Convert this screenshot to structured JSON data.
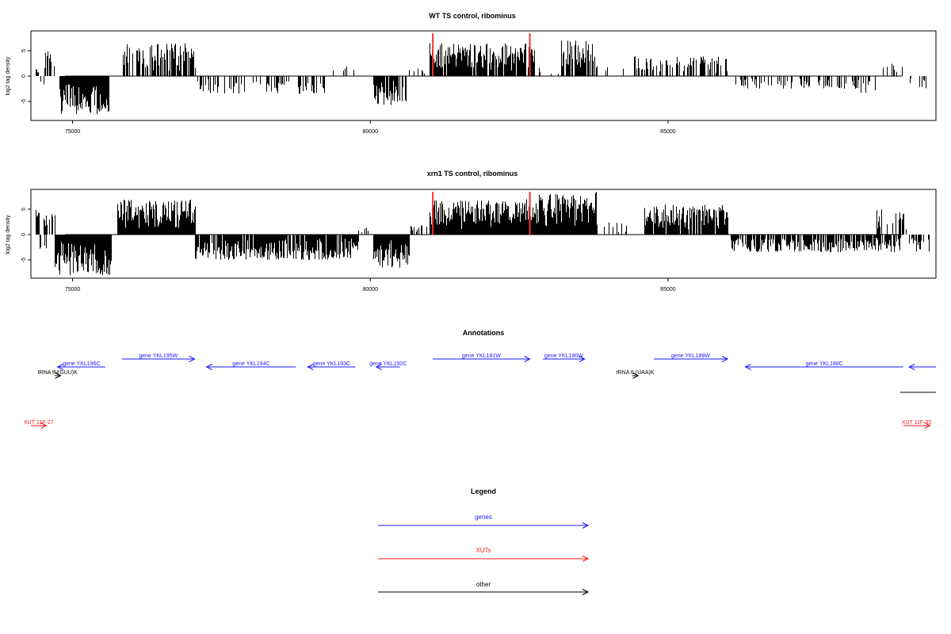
{
  "chart_data": [
    {
      "type": "bar",
      "title": "WT TS control, ribominus",
      "xlabel": "",
      "ylabel": "log2 tag density",
      "xlim": [
        74300,
        89500
      ],
      "ylim": [
        -8.5,
        8.5
      ],
      "x_ticks": [
        75000,
        80000,
        85000
      ],
      "x_tick_labels": [
        "75000",
        "80000",
        "85000"
      ],
      "y_ticks": [
        -5,
        0,
        5
      ],
      "y_tick_labels": [
        "-5",
        "0",
        "5"
      ],
      "grid": false,
      "bar_color": "#000000",
      "marker_color": "#ff3030",
      "markers_x": [
        81050,
        82680
      ],
      "segments": [
        {
          "start": 74360,
          "end": 74440,
          "sign": 1,
          "amp": 1.5,
          "density": 0.4
        },
        {
          "start": 74440,
          "end": 74520,
          "sign": -1,
          "amp": 1.8,
          "density": 0.3
        },
        {
          "start": 74520,
          "end": 74680,
          "sign": 1,
          "amp": 5.5,
          "density": 0.5
        },
        {
          "start": 74780,
          "end": 75600,
          "sign": -1,
          "amp": 7.5,
          "density": 1.0
        },
        {
          "start": 75800,
          "end": 77050,
          "sign": 1,
          "amp": 6.5,
          "density": 0.7
        },
        {
          "start": 77100,
          "end": 79300,
          "sign": -1,
          "amp": 3.5,
          "density": 0.35
        },
        {
          "start": 79300,
          "end": 79800,
          "sign": 1,
          "amp": 2.0,
          "density": 0.15
        },
        {
          "start": 80050,
          "end": 80600,
          "sign": -1,
          "amp": 6.0,
          "density": 0.9
        },
        {
          "start": 80650,
          "end": 80900,
          "sign": 1,
          "amp": 1.5,
          "density": 0.2
        },
        {
          "start": 81000,
          "end": 82750,
          "sign": 1,
          "amp": 6.5,
          "density": 0.9
        },
        {
          "start": 82800,
          "end": 83200,
          "sign": 1,
          "amp": 2.0,
          "density": 0.2
        },
        {
          "start": 83200,
          "end": 83800,
          "sign": 1,
          "amp": 7.0,
          "density": 0.8
        },
        {
          "start": 83850,
          "end": 84300,
          "sign": 1,
          "amp": 2.0,
          "density": 0.15
        },
        {
          "start": 84400,
          "end": 86000,
          "sign": 1,
          "amp": 4.0,
          "density": 0.45
        },
        {
          "start": 86100,
          "end": 88200,
          "sign": -1,
          "amp": 2.5,
          "density": 0.35
        },
        {
          "start": 88200,
          "end": 88500,
          "sign": -1,
          "amp": 4.0,
          "density": 0.3
        },
        {
          "start": 88600,
          "end": 88950,
          "sign": 1,
          "amp": 2.5,
          "density": 0.2
        },
        {
          "start": 89050,
          "end": 89400,
          "sign": -1,
          "amp": 2.5,
          "density": 0.3
        }
      ]
    },
    {
      "type": "bar",
      "title": "xrn1 TS control, ribominus",
      "xlabel": "",
      "ylabel": "log2 tag density",
      "xlim": [
        74300,
        89500
      ],
      "ylim": [
        -8.5,
        8.5
      ],
      "x_ticks": [
        75000,
        80000,
        85000
      ],
      "x_tick_labels": [
        "75000",
        "80000",
        "85000"
      ],
      "y_ticks": [
        -5,
        0,
        5
      ],
      "y_tick_labels": [
        "-5",
        "0",
        "5"
      ],
      "grid": false,
      "bar_color": "#000000",
      "marker_color": "#ff3030",
      "markers_x": [
        81050,
        82680
      ],
      "segments": [
        {
          "start": 74360,
          "end": 74700,
          "sign": 1,
          "amp": 5.0,
          "density": 0.6
        },
        {
          "start": 74400,
          "end": 74550,
          "sign": -1,
          "amp": 3.0,
          "density": 0.4
        },
        {
          "start": 74700,
          "end": 75650,
          "sign": -1,
          "amp": 8.0,
          "density": 1.0
        },
        {
          "start": 75750,
          "end": 77050,
          "sign": 1,
          "amp": 7.0,
          "density": 1.0
        },
        {
          "start": 77050,
          "end": 79800,
          "sign": -1,
          "amp": 5.0,
          "density": 0.85
        },
        {
          "start": 79800,
          "end": 80000,
          "sign": 1,
          "amp": 1.5,
          "density": 0.3
        },
        {
          "start": 80050,
          "end": 80650,
          "sign": -1,
          "amp": 6.5,
          "density": 1.0
        },
        {
          "start": 80650,
          "end": 80950,
          "sign": 1,
          "amp": 2.0,
          "density": 0.5
        },
        {
          "start": 81000,
          "end": 82750,
          "sign": 1,
          "amp": 7.0,
          "density": 1.0
        },
        {
          "start": 82750,
          "end": 83800,
          "sign": 1,
          "amp": 8.5,
          "density": 1.0
        },
        {
          "start": 83850,
          "end": 84300,
          "sign": 1,
          "amp": 2.5,
          "density": 0.3
        },
        {
          "start": 84600,
          "end": 86000,
          "sign": 1,
          "amp": 6.0,
          "density": 0.9
        },
        {
          "start": 86050,
          "end": 88900,
          "sign": -1,
          "amp": 3.5,
          "density": 0.75
        },
        {
          "start": 88500,
          "end": 89000,
          "sign": 1,
          "amp": 5.0,
          "density": 0.45
        },
        {
          "start": 89050,
          "end": 89400,
          "sign": -1,
          "amp": 3.5,
          "density": 0.6
        }
      ]
    }
  ],
  "annotations": {
    "title": "Annotations",
    "colors": {
      "gene": "#1a1aff",
      "xut": "#ff1a1a",
      "other": "#000000"
    },
    "features": [
      {
        "label": "tRNA tN(GUU)K",
        "kind": "other",
        "start": 74700,
        "end": 74800,
        "strand": "+",
        "row": 3
      },
      {
        "label": "gene YKL196C",
        "kind": "gene",
        "start": 74750,
        "end": 75550,
        "strand": "-",
        "row": 2
      },
      {
        "label": "gene YKL195W",
        "kind": "gene",
        "start": 75830,
        "end": 77050,
        "strand": "+",
        "row": 1
      },
      {
        "label": "gene YKL194C",
        "kind": "gene",
        "start": 77250,
        "end": 78750,
        "strand": "-",
        "row": 2
      },
      {
        "label": "gene YKL193C",
        "kind": "gene",
        "start": 78950,
        "end": 79750,
        "strand": "-",
        "row": 2
      },
      {
        "label": "gene YKL192C",
        "kind": "gene",
        "start": 80100,
        "end": 80500,
        "strand": "-",
        "row": 2
      },
      {
        "label": "gene YKL191W",
        "kind": "gene",
        "start": 81050,
        "end": 82680,
        "strand": "+",
        "row": 1
      },
      {
        "label": "gene YKL190W",
        "kind": "gene",
        "start": 82900,
        "end": 83600,
        "strand": "+",
        "row": 1
      },
      {
        "label": "tRNA tL(UAA)K",
        "kind": "other",
        "start": 84400,
        "end": 84500,
        "strand": "+",
        "row": 3
      },
      {
        "label": "gene YKL189W",
        "kind": "gene",
        "start": 84760,
        "end": 86000,
        "strand": "+",
        "row": 1
      },
      {
        "label": "gene YKL188C",
        "kind": "gene",
        "start": 86300,
        "end": 88950,
        "strand": "-",
        "row": 2
      },
      {
        "label": "",
        "kind": "gene",
        "start": 89050,
        "end": 89500,
        "strand": "-",
        "row": 2
      },
      {
        "label": "",
        "kind": "other",
        "start": 88900,
        "end": 89500,
        "strand": "none",
        "row": 4
      },
      {
        "label": "XUT 11F-27",
        "kind": "xut",
        "start": 74300,
        "end": 74560,
        "strand": "+",
        "row": 5
      },
      {
        "label": "XUT 11F-35",
        "kind": "xut",
        "start": 88950,
        "end": 89400,
        "strand": "+",
        "row": 5
      }
    ]
  },
  "legend": {
    "title": "Legend",
    "items": [
      {
        "label": "genes",
        "color": "#1a1aff"
      },
      {
        "label": "XUTs",
        "color": "#ff1a1a"
      },
      {
        "label": "other",
        "color": "#000000"
      }
    ]
  }
}
